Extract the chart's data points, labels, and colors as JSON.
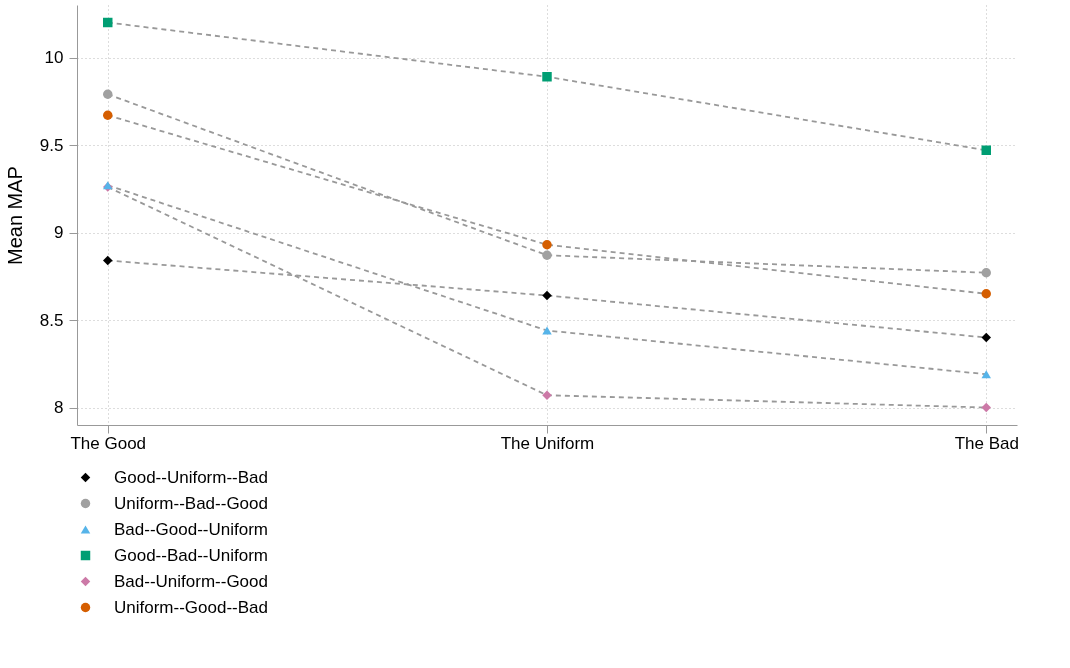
{
  "chart_data": {
    "type": "line",
    "ylabel": "Mean MAP",
    "categories": [
      "The Good",
      "The Uniform",
      "The Bad"
    ],
    "series": [
      {
        "name": "Good--Uniform--Bad",
        "color": "#000000",
        "marker": "diamond",
        "values": [
          8.84,
          8.64,
          8.4
        ]
      },
      {
        "name": "Uniform--Bad--Good",
        "color": "#a0a0a0",
        "marker": "circle",
        "values": [
          9.79,
          8.87,
          8.77
        ]
      },
      {
        "name": "Bad--Good--Uniform",
        "color": "#56b4e9",
        "marker": "triangle",
        "values": [
          9.27,
          8.44,
          8.19
        ]
      },
      {
        "name": "Good--Bad--Uniform",
        "color": "#009e73",
        "marker": "square",
        "values": [
          10.2,
          9.89,
          9.47
        ]
      },
      {
        "name": "Bad--Uniform--Good",
        "color": "#cc79a7",
        "marker": "diamond",
        "values": [
          9.26,
          8.07,
          8.0
        ]
      },
      {
        "name": "Uniform--Good--Bad",
        "color": "#d55e00",
        "marker": "circle",
        "values": [
          9.67,
          8.93,
          8.65
        ]
      }
    ],
    "ylim": [
      7.9,
      10.3
    ],
    "yticks": [
      8,
      8.5,
      9,
      9.5,
      10
    ],
    "grid": true,
    "legend": "bottom",
    "line_style": "dashed"
  }
}
